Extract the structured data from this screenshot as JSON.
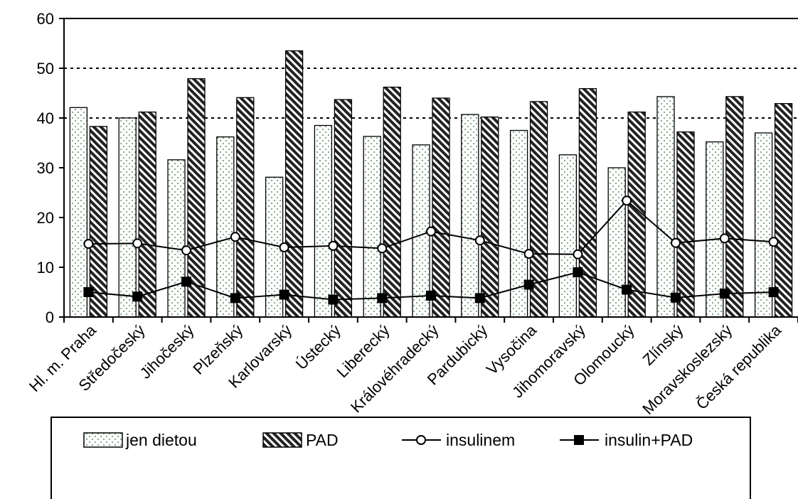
{
  "chart_data": {
    "type": "bar",
    "categories": [
      "Hl. m. Praha",
      "Středočeský",
      "Jihočeský",
      "Plzeňský",
      "Karlovarský",
      "Ústecký",
      "Liberecký",
      "Královéhradecký",
      "Pardubický",
      "Vysočina",
      "Jihomoravský",
      "Olomoucký",
      "Zlínský",
      "Moravskoslezský",
      "Česká republika"
    ],
    "series": [
      {
        "name": "jen dietou",
        "kind": "bar",
        "pattern": "dots",
        "values": [
          42.1,
          40.0,
          31.6,
          36.2,
          28.1,
          38.5,
          36.3,
          34.6,
          40.7,
          37.5,
          32.6,
          30.0,
          44.3,
          35.2,
          37.0
        ]
      },
      {
        "name": "PAD",
        "kind": "bar",
        "pattern": "hatch",
        "values": [
          38.3,
          41.2,
          47.9,
          44.1,
          53.5,
          43.7,
          46.2,
          44.0,
          40.2,
          43.3,
          45.9,
          41.2,
          37.2,
          44.3,
          42.9
        ]
      },
      {
        "name": "insulinem",
        "kind": "line",
        "marker": "circle-open",
        "values": [
          14.7,
          14.8,
          13.4,
          16.1,
          14.0,
          14.3,
          13.8,
          17.2,
          15.4,
          12.7,
          12.6,
          23.4,
          14.9,
          15.8,
          15.1
        ]
      },
      {
        "name": "insulin+PAD",
        "kind": "line",
        "marker": "square-filled",
        "values": [
          5.0,
          4.1,
          7.1,
          3.8,
          4.5,
          3.5,
          3.8,
          4.3,
          3.8,
          6.5,
          9.0,
          5.5,
          3.9,
          4.7,
          5.0
        ]
      }
    ],
    "yticks": [
      "0",
      "10",
      "20",
      "30",
      "40",
      "50",
      "60"
    ],
    "ylim": [
      0,
      60
    ],
    "grid": "horizontal dotted at 40, 50",
    "legend_position": "bottom"
  }
}
